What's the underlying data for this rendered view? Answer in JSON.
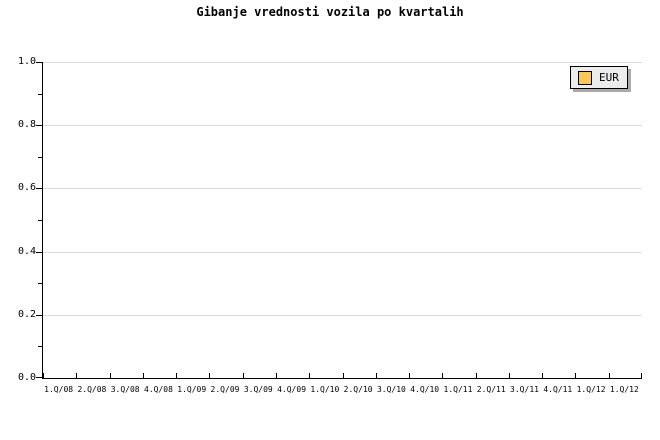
{
  "chart": {
    "title": "Gibanje vrednosti vozila po kvartalih",
    "legend": {
      "label": "EUR",
      "swatch_color": "#fbc75d",
      "background": "#ececec",
      "shadow_color": "#aaaaaa"
    }
  },
  "chart_data": {
    "type": "line",
    "title": "Gibanje vrednosti vozila po kvartalih",
    "categories": [
      "1.Q/08",
      "2.Q/08",
      "3.Q/08",
      "4.Q/08",
      "1.Q/09",
      "2.Q/09",
      "3.Q/09",
      "4.Q/09",
      "1.Q/10",
      "2.Q/10",
      "3.Q/10",
      "4.Q/10",
      "1.Q/11",
      "2.Q/11",
      "3.Q/11",
      "4.Q/11",
      "1.Q/12",
      "1.Q/12"
    ],
    "series": [
      {
        "name": "EUR",
        "color": "#fbc75d",
        "values": []
      }
    ],
    "ylim": [
      0.0,
      1.0
    ],
    "y_ticks": [
      0.0,
      0.2,
      0.4,
      0.6,
      0.8,
      1.0
    ],
    "y_tick_labels": [
      "0.0",
      "0.2",
      "0.4",
      "0.6",
      "0.8",
      "1.0"
    ],
    "y_minor_ticks": [
      0.1,
      0.3,
      0.5,
      0.7,
      0.9
    ],
    "grid": "horizontal-major-only",
    "grid_color": "#dcdcdc",
    "axis_color": "#000000",
    "legend_position": "top-right",
    "plot_area_empty": true
  }
}
